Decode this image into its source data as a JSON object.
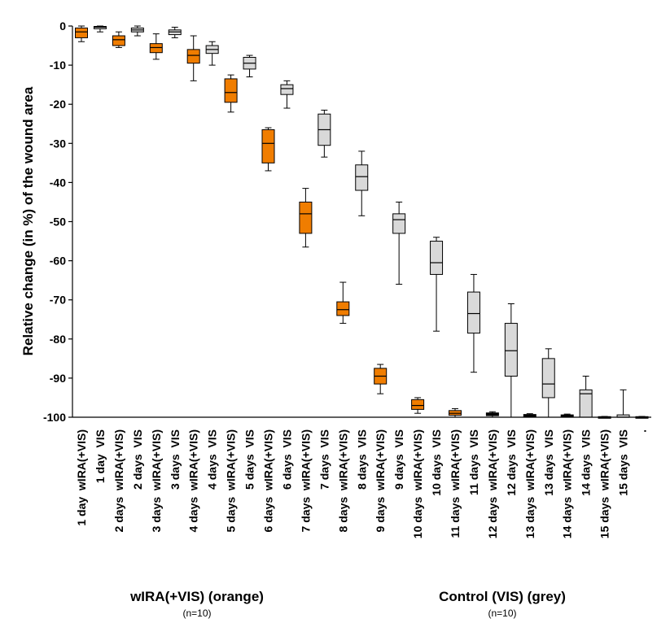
{
  "chart_data": {
    "type": "box",
    "title": "",
    "ylabel": "Relative change (in %) of the wound area",
    "xlabel": "",
    "ylim": [
      -100,
      0
    ],
    "yticks": [
      0,
      -10,
      -20,
      -30,
      -40,
      -50,
      -60,
      -70,
      -80,
      -90,
      -100
    ],
    "grid": false,
    "colors": {
      "wIRA": "#f07d00",
      "VIS": "#d9d9d9",
      "stroke": "#000000"
    },
    "categories": [
      "1 day  wIRA(+VIS)",
      "1 day  VIS",
      "2 days  wIRA(+VIS)",
      "2 days  VIS",
      "3 days  wIRA(+VIS)",
      "3 days  VIS",
      "4 days  wIRA(+VIS)",
      "4 days  VIS",
      "5 days  wIRA(+VIS)",
      "5 days  VIS",
      "6 days  wIRA(+VIS)",
      "6 days  VIS",
      "7 days  wIRA(+VIS)",
      "7 days  VIS",
      "8 days  wIRA(+VIS)",
      "8 days  VIS",
      "9 days  wIRA(+VIS)",
      "9 days  VIS",
      "10 days  wIRA(+VIS)",
      "10 days  VIS",
      "11 days  wIRA(+VIS)",
      "11 days  VIS",
      "12 days  wIRA(+VIS)",
      "12 days  VIS",
      "13 days  wIRA(+VIS)",
      "13 days  VIS",
      "14 days  wIRA(+VIS)",
      "14 days  VIS",
      "15 days  wIRA(+VIS)",
      "15 days  VIS",
      "."
    ],
    "boxes": [
      {
        "group": "wIRA",
        "min": -4,
        "q1": -3,
        "median": -1.5,
        "q3": -0.5,
        "max": 0
      },
      {
        "group": "VIS",
        "min": -1.5,
        "q1": -0.7,
        "median": -0.3,
        "q3": -0.1,
        "max": 0
      },
      {
        "group": "wIRA",
        "min": -5.5,
        "q1": -5,
        "median": -3.5,
        "q3": -2.5,
        "max": -1.5
      },
      {
        "group": "VIS",
        "min": -2.5,
        "q1": -1.5,
        "median": -1,
        "q3": -0.5,
        "max": 0
      },
      {
        "group": "wIRA",
        "min": -8.5,
        "q1": -6.8,
        "median": -5.5,
        "q3": -4.5,
        "max": -2
      },
      {
        "group": "VIS",
        "min": -3,
        "q1": -2.2,
        "median": -1.5,
        "q3": -1,
        "max": -0.3
      },
      {
        "group": "wIRA",
        "min": -14,
        "q1": -9.5,
        "median": -7.5,
        "q3": -6,
        "max": -2.5
      },
      {
        "group": "VIS",
        "min": -10,
        "q1": -7,
        "median": -6,
        "q3": -5,
        "max": -4
      },
      {
        "group": "wIRA",
        "min": -22,
        "q1": -19.5,
        "median": -17,
        "q3": -13.5,
        "max": -12.5
      },
      {
        "group": "VIS",
        "min": -13,
        "q1": -11,
        "median": -9.5,
        "q3": -8,
        "max": -7.5
      },
      {
        "group": "wIRA",
        "min": -37,
        "q1": -35,
        "median": -30,
        "q3": -26.5,
        "max": -26
      },
      {
        "group": "VIS",
        "min": -21,
        "q1": -17.5,
        "median": -16,
        "q3": -15,
        "max": -14
      },
      {
        "group": "wIRA",
        "min": -56.5,
        "q1": -53,
        "median": -48,
        "q3": -45,
        "max": -41.5
      },
      {
        "group": "VIS",
        "min": -33.5,
        "q1": -30.5,
        "median": -26.5,
        "q3": -22.5,
        "max": -21.5
      },
      {
        "group": "wIRA",
        "min": -76,
        "q1": -74,
        "median": -72.5,
        "q3": -70.5,
        "max": -65.5
      },
      {
        "group": "VIS",
        "min": -48.5,
        "q1": -42,
        "median": -38.5,
        "q3": -35.5,
        "max": -32
      },
      {
        "group": "wIRA",
        "min": -94,
        "q1": -91.5,
        "median": -89.5,
        "q3": -87.5,
        "max": -86.5
      },
      {
        "group": "VIS",
        "min": -66,
        "q1": -53,
        "median": -49.5,
        "q3": -48,
        "max": -45
      },
      {
        "group": "wIRA",
        "min": -99,
        "q1": -98,
        "median": -97,
        "q3": -95.5,
        "max": -95
      },
      {
        "group": "VIS",
        "min": -78,
        "q1": -63.5,
        "median": -60.5,
        "q3": -55,
        "max": -54
      },
      {
        "group": "wIRA",
        "min": -100,
        "q1": -99.5,
        "median": -99,
        "q3": -98.3,
        "max": -97.8
      },
      {
        "group": "VIS",
        "min": -88.5,
        "q1": -78.5,
        "median": -73.5,
        "q3": -68,
        "max": -63.5
      },
      {
        "group": "wIRA",
        "min": -100,
        "q1": -99.6,
        "median": -99.3,
        "q3": -98.9,
        "max": -98.6
      },
      {
        "group": "VIS",
        "min": -100,
        "q1": -89.5,
        "median": -83,
        "q3": -76,
        "max": -71
      },
      {
        "group": "wIRA",
        "min": -100,
        "q1": -99.8,
        "median": -99.6,
        "q3": -99.3,
        "max": -99.1
      },
      {
        "group": "VIS",
        "min": -100,
        "q1": -95,
        "median": -91.5,
        "q3": -85,
        "max": -82.5
      },
      {
        "group": "wIRA",
        "min": -100,
        "q1": -99.8,
        "median": -99.7,
        "q3": -99.4,
        "max": -99.2
      },
      {
        "group": "VIS",
        "min": -100,
        "q1": -100,
        "median": -94,
        "q3": -93,
        "max": -89.5
      },
      {
        "group": "wIRA",
        "min": -100,
        "q1": -100,
        "median": -100,
        "q3": -99.85,
        "max": -99.8
      },
      {
        "group": "VIS",
        "min": -100,
        "q1": -100,
        "median": -100,
        "q3": -99.4,
        "max": -93
      },
      {
        "group": "none",
        "min": -100,
        "q1": -100,
        "median": -100,
        "q3": -99.85,
        "max": -99.8
      }
    ],
    "legend": [
      {
        "label": "wIRA(+VIS) (orange)",
        "n": "(n=10)"
      },
      {
        "label": "Control (VIS) (grey)",
        "n": "(n=10)"
      }
    ]
  }
}
